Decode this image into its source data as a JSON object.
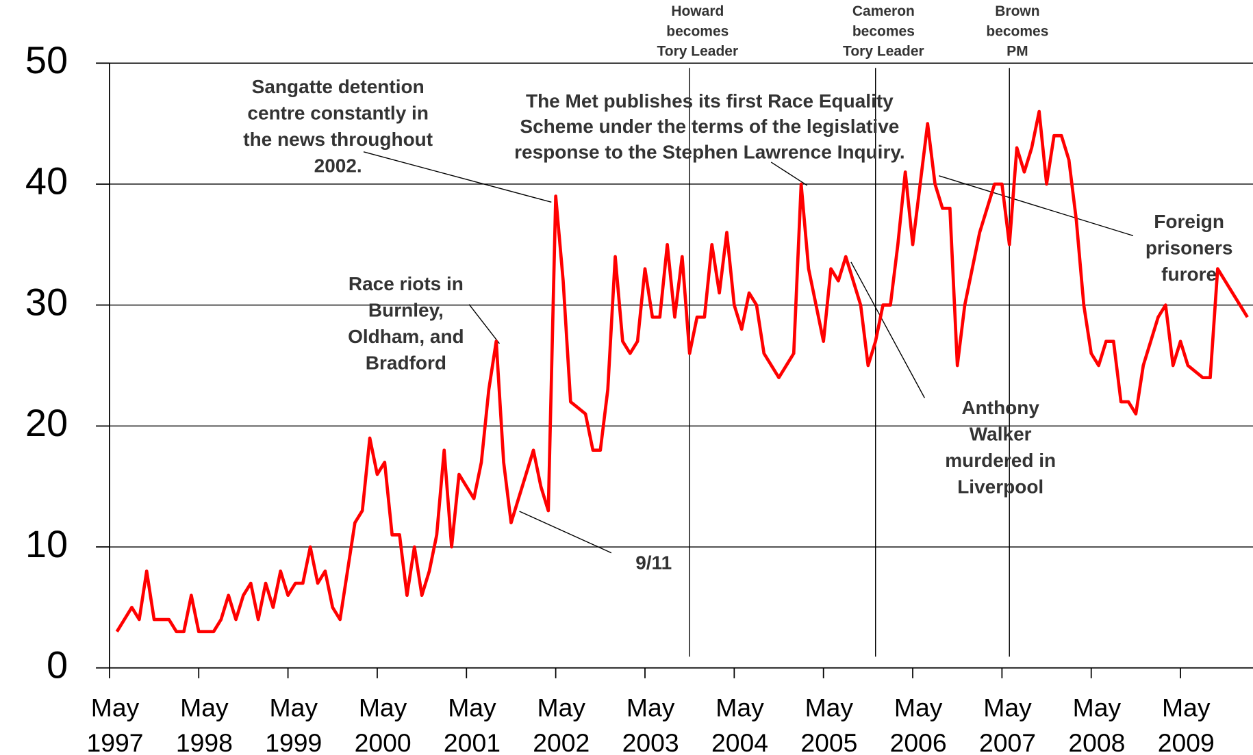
{
  "chart_data": {
    "type": "line",
    "x": [
      "1997-06",
      "1997-07",
      "1997-08",
      "1997-09",
      "1997-10",
      "1997-11",
      "1997-12",
      "1998-01",
      "1998-02",
      "1998-03",
      "1998-04",
      "1998-05",
      "1998-06",
      "1998-07",
      "1998-08",
      "1998-09",
      "1998-10",
      "1998-11",
      "1998-12",
      "1999-01",
      "1999-02",
      "1999-03",
      "1999-04",
      "1999-05",
      "1999-06",
      "1999-07",
      "1999-08",
      "1999-09",
      "1999-10",
      "1999-11",
      "1999-12",
      "2000-01",
      "2000-02",
      "2000-03",
      "2000-04",
      "2000-05",
      "2000-06",
      "2000-07",
      "2000-08",
      "2000-09",
      "2000-10",
      "2000-11",
      "2000-12",
      "2001-01",
      "2001-02",
      "2001-03",
      "2001-04",
      "2001-05",
      "2001-06",
      "2001-07",
      "2001-08",
      "2001-09",
      "2001-10",
      "2001-11",
      "2001-12",
      "2002-01",
      "2002-02",
      "2002-03",
      "2002-04",
      "2002-05",
      "2002-06",
      "2002-07",
      "2002-08",
      "2002-09",
      "2002-10",
      "2002-11",
      "2002-12",
      "2003-01",
      "2003-02",
      "2003-03",
      "2003-04",
      "2003-05",
      "2003-06",
      "2003-07",
      "2003-08",
      "2003-09",
      "2003-10",
      "2003-11",
      "2003-12",
      "2004-01",
      "2004-02",
      "2004-03",
      "2004-04",
      "2004-05",
      "2004-06",
      "2004-07",
      "2004-08",
      "2004-09",
      "2004-10",
      "2004-11",
      "2004-12",
      "2005-01",
      "2005-02",
      "2005-03",
      "2005-04",
      "2005-05",
      "2005-06",
      "2005-07",
      "2005-08",
      "2005-09",
      "2005-10",
      "2005-11",
      "2005-12",
      "2006-01",
      "2006-02",
      "2006-03",
      "2006-04",
      "2006-05",
      "2006-06",
      "2006-07",
      "2006-08",
      "2006-09",
      "2006-10",
      "2006-11",
      "2006-12",
      "2007-01",
      "2007-02",
      "2007-03",
      "2007-04",
      "2007-05",
      "2007-06",
      "2007-07",
      "2007-08",
      "2007-09",
      "2007-10",
      "2007-11",
      "2007-12",
      "2008-01",
      "2008-02",
      "2008-03",
      "2008-04",
      "2008-05",
      "2008-06",
      "2008-07",
      "2008-08",
      "2008-09",
      "2008-10",
      "2008-11",
      "2008-12",
      "2009-01",
      "2009-02",
      "2009-03",
      "2009-04",
      "2009-05",
      "2009-06",
      "2009-07",
      "2009-08",
      "2009-09",
      "2009-10",
      "2009-11",
      "2009-12",
      "2010-01",
      "2010-02"
    ],
    "series": [
      {
        "color": "#ff0000",
        "values": [
          3,
          4,
          5,
          4,
          8,
          4,
          4,
          4,
          3,
          3,
          6,
          3,
          3,
          3,
          4,
          6,
          4,
          6,
          7,
          4,
          7,
          5,
          8,
          6,
          7,
          7,
          10,
          7,
          8,
          5,
          4,
          8,
          12,
          13,
          19,
          16,
          17,
          11,
          11,
          6,
          10,
          6,
          8,
          11,
          18,
          10,
          16,
          15,
          14,
          17,
          23,
          27,
          17,
          12,
          14,
          16,
          18,
          15,
          13,
          39,
          32,
          22,
          21.5,
          21,
          18,
          18,
          23,
          34,
          27,
          26,
          27,
          33,
          29,
          29,
          35,
          29,
          34,
          26,
          29,
          29,
          35,
          31,
          36,
          30,
          28,
          31,
          30,
          26,
          25,
          24,
          25,
          26,
          40,
          33,
          30,
          27,
          33,
          32,
          34,
          32,
          30,
          25,
          27,
          30,
          30,
          35,
          41,
          35,
          40,
          45,
          40,
          38,
          38,
          25,
          30,
          33,
          36,
          38,
          40,
          40,
          35,
          43,
          41,
          43,
          46,
          40,
          44,
          44,
          42,
          37,
          30,
          26,
          25,
          27,
          27,
          22,
          22,
          21,
          25,
          27,
          29,
          30,
          25,
          27,
          25,
          24.5,
          24,
          24,
          33,
          32,
          31,
          30,
          29
        ]
      }
    ],
    "xlim": [
      "1997-05",
      "2010-02"
    ],
    "xticks": [
      {
        "value": "1997-05",
        "label": "May 1997"
      },
      {
        "value": "1998-05",
        "label": "May 1998"
      },
      {
        "value": "1999-05",
        "label": "May 1999"
      },
      {
        "value": "2000-05",
        "label": "May 2000"
      },
      {
        "value": "2001-05",
        "label": "May 2001"
      },
      {
        "value": "2002-05",
        "label": "May 2002"
      },
      {
        "value": "2003-05",
        "label": "May 2003"
      },
      {
        "value": "2004-05",
        "label": "May 2004"
      },
      {
        "value": "2005-05",
        "label": "May 2005"
      },
      {
        "value": "2006-05",
        "label": "May 2006"
      },
      {
        "value": "2007-05",
        "label": "May 2007"
      },
      {
        "value": "2008-05",
        "label": "May 2008"
      },
      {
        "value": "2009-05",
        "label": "May 2009"
      }
    ],
    "ylim": [
      0,
      50
    ],
    "yticks": [
      0,
      10,
      20,
      30,
      40,
      50
    ],
    "grid": true,
    "events": [
      {
        "x": "2003-11",
        "lines": [
          "Howard",
          "becomes",
          "Tory Leader"
        ]
      },
      {
        "x": "2005-12",
        "lines": [
          "Cameron",
          "becomes",
          "Tory Leader"
        ]
      },
      {
        "x": "2007-06",
        "lines": [
          "Brown",
          "becomes",
          "PM"
        ]
      }
    ],
    "annotations": [
      {
        "lines": [
          "Sangatte detention",
          "centre constantly in",
          "the news throughout",
          "2002."
        ]
      },
      {
        "lines": [
          "The Met publishes its first Race Equality",
          "Scheme under the terms of the legislative",
          "response to the Stephen Lawrence Inquiry."
        ]
      },
      {
        "lines": [
          "Race riots in",
          "Burnley,",
          "Oldham, and",
          "Bradford"
        ]
      },
      {
        "lines": [
          "Foreign",
          "prisoners",
          "furore"
        ]
      },
      {
        "lines": [
          "Anthony",
          "Walker",
          "murdered in",
          "Liverpool"
        ]
      },
      {
        "lines": [
          "9/11"
        ]
      }
    ]
  }
}
